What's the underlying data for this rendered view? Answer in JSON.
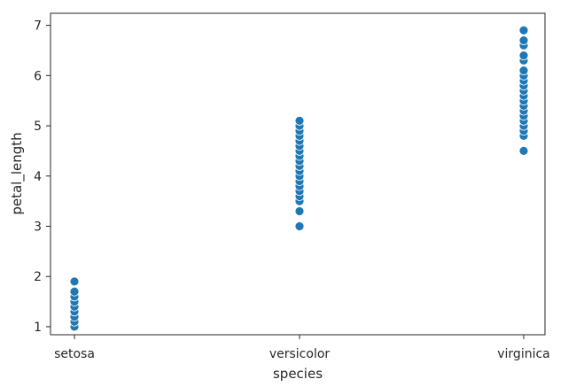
{
  "chart_data": {
    "type": "scatter",
    "title": "",
    "xlabel": "species",
    "ylabel": "petal_length",
    "categories": [
      "setosa",
      "versicolor",
      "virginica"
    ],
    "ylim": [
      0.84,
      7.24
    ],
    "yticks": [
      1,
      2,
      3,
      4,
      5,
      6,
      7
    ],
    "grid": false,
    "legend": "none",
    "marker_color": "#1f77b4",
    "marker_edge_color": "#ffffff",
    "points": [
      {
        "x": "setosa",
        "y": 1.0
      },
      {
        "x": "setosa",
        "y": 1.1
      },
      {
        "x": "setosa",
        "y": 1.2
      },
      {
        "x": "setosa",
        "y": 1.3
      },
      {
        "x": "setosa",
        "y": 1.4
      },
      {
        "x": "setosa",
        "y": 1.5
      },
      {
        "x": "setosa",
        "y": 1.6
      },
      {
        "x": "setosa",
        "y": 1.7
      },
      {
        "x": "setosa",
        "y": 1.9
      },
      {
        "x": "versicolor",
        "y": 3.0
      },
      {
        "x": "versicolor",
        "y": 3.3
      },
      {
        "x": "versicolor",
        "y": 3.5
      },
      {
        "x": "versicolor",
        "y": 3.6
      },
      {
        "x": "versicolor",
        "y": 3.7
      },
      {
        "x": "versicolor",
        "y": 3.8
      },
      {
        "x": "versicolor",
        "y": 3.9
      },
      {
        "x": "versicolor",
        "y": 4.0
      },
      {
        "x": "versicolor",
        "y": 4.1
      },
      {
        "x": "versicolor",
        "y": 4.2
      },
      {
        "x": "versicolor",
        "y": 4.3
      },
      {
        "x": "versicolor",
        "y": 4.4
      },
      {
        "x": "versicolor",
        "y": 4.5
      },
      {
        "x": "versicolor",
        "y": 4.6
      },
      {
        "x": "versicolor",
        "y": 4.7
      },
      {
        "x": "versicolor",
        "y": 4.8
      },
      {
        "x": "versicolor",
        "y": 4.9
      },
      {
        "x": "versicolor",
        "y": 5.0
      },
      {
        "x": "versicolor",
        "y": 5.1
      },
      {
        "x": "virginica",
        "y": 4.5
      },
      {
        "x": "virginica",
        "y": 4.8
      },
      {
        "x": "virginica",
        "y": 4.9
      },
      {
        "x": "virginica",
        "y": 5.0
      },
      {
        "x": "virginica",
        "y": 5.1
      },
      {
        "x": "virginica",
        "y": 5.2
      },
      {
        "x": "virginica",
        "y": 5.3
      },
      {
        "x": "virginica",
        "y": 5.4
      },
      {
        "x": "virginica",
        "y": 5.5
      },
      {
        "x": "virginica",
        "y": 5.6
      },
      {
        "x": "virginica",
        "y": 5.7
      },
      {
        "x": "virginica",
        "y": 5.8
      },
      {
        "x": "virginica",
        "y": 5.9
      },
      {
        "x": "virginica",
        "y": 6.0
      },
      {
        "x": "virginica",
        "y": 6.1
      },
      {
        "x": "virginica",
        "y": 6.3
      },
      {
        "x": "virginica",
        "y": 6.4
      },
      {
        "x": "virginica",
        "y": 6.6
      },
      {
        "x": "virginica",
        "y": 6.7
      },
      {
        "x": "virginica",
        "y": 6.9
      }
    ]
  }
}
